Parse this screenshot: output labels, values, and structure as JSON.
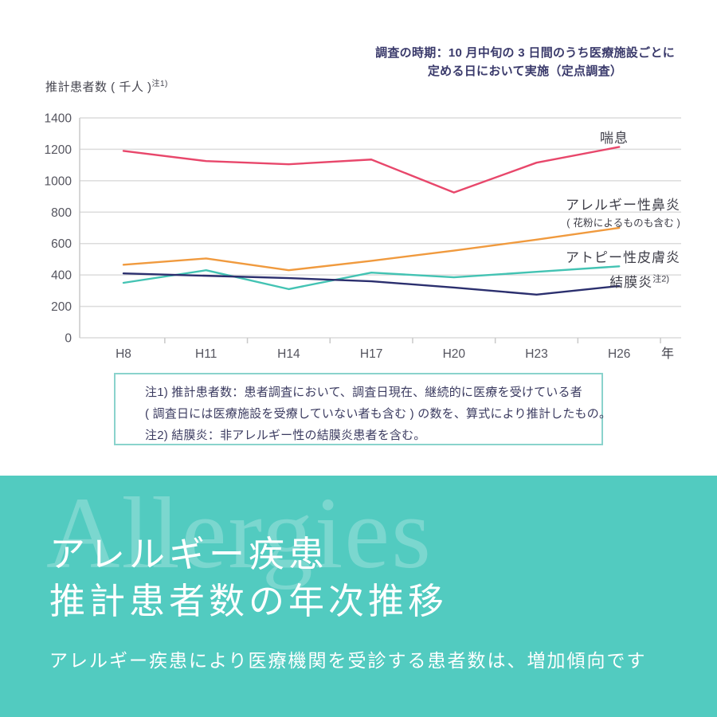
{
  "header": {
    "survey_note_line1": "調査の時期：10 月中旬の 3 日間のうち医療施設ごとに",
    "survey_note_line2": "定める日において実施（定点調査）",
    "y_axis_title": "推計患者数 ( 千人 )",
    "y_axis_title_sup": "注1)"
  },
  "chart_data": {
    "type": "line",
    "categories": [
      "H8",
      "H11",
      "H14",
      "H17",
      "H20",
      "H23",
      "H26"
    ],
    "x_unit_label": "年",
    "ylabel": "推計患者数 ( 千人 )",
    "ylim": [
      0,
      1400
    ],
    "y_tick_step": 200,
    "grid": true,
    "legend_position": "inline-right",
    "series": [
      {
        "name": "喘息",
        "color": "#e8476b",
        "values": [
          1190,
          1125,
          1105,
          1135,
          925,
          1115,
          1215
        ]
      },
      {
        "name": "アレルギー性鼻炎",
        "note": "( 花粉によるものも含む )",
        "color": "#f09a3e",
        "values": [
          465,
          505,
          430,
          490,
          555,
          625,
          700
        ]
      },
      {
        "name": "アトピー性皮膚炎",
        "color": "#43c3b3",
        "values": [
          350,
          430,
          310,
          415,
          385,
          420,
          455
        ]
      },
      {
        "name": "結膜炎",
        "sup": "注2)",
        "color": "#2b2f6e",
        "values": [
          410,
          395,
          380,
          360,
          320,
          275,
          330
        ]
      }
    ]
  },
  "notes": {
    "line1": "注1) 推計患者数：患者調査において、調査日現在、継続的に医療を受けている者",
    "line2": "( 調査日には医療施設を受療していない者も含む ) の数を、算式により推計したもの。",
    "line3": "注2) 結膜炎：非アレルギー性の結膜炎患者を含む。"
  },
  "banner": {
    "watermark": "Allergies",
    "title_line1": "アレルギー疾患",
    "title_line2": "推計患者数の年次推移",
    "subtitle": "アレルギー疾患により医療機関を受診する患者数は、増加傾向です",
    "background_color": "#52cbc0"
  },
  "colors": {
    "banner_teal": "#52cbc0",
    "note_border": "#8ad3cc",
    "dark_navy_text": "#3a3a6b",
    "chart_text": "#54545e",
    "gridline": "#dcdcdc",
    "axis": "#c9c9c9"
  }
}
